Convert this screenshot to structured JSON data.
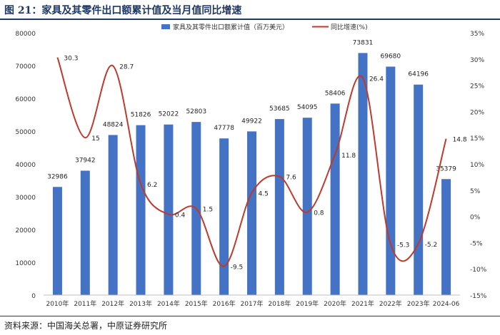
{
  "header": {
    "title": "图 21：家具及其零件出口额累计值及当月值同比增速"
  },
  "footer": {
    "source": "资料来源：中国海关总署，中原证券研究所"
  },
  "chart_data": {
    "type": "bar",
    "title": "家具及其零件出口额累计值及当月值同比增速",
    "categories": [
      "2010年",
      "2011年",
      "2012年",
      "2013年",
      "2014年",
      "2015年",
      "2016年",
      "2017年",
      "2018年",
      "2019年",
      "2020年",
      "2021年",
      "2022年",
      "2023年",
      "2024-06"
    ],
    "series": [
      {
        "name": "家具及其零件出口额累计值（百万美元）",
        "type": "bar",
        "axis": "left",
        "color": "#4472c4",
        "values": [
          32986,
          37942,
          48824,
          51826,
          52022,
          52803,
          47778,
          49922,
          53685,
          54095,
          58406,
          73831,
          69680,
          64196,
          35379
        ]
      },
      {
        "name": "同比增速(%)",
        "type": "line",
        "axis": "right",
        "color": "#c0392b",
        "values": [
          30.3,
          15.0,
          28.7,
          6.2,
          0.4,
          1.5,
          -9.5,
          4.5,
          7.6,
          0.8,
          11.8,
          26.4,
          -5.3,
          -5.2,
          14.8
        ]
      }
    ],
    "left_axis": {
      "min": 0,
      "max": 80000,
      "step": 10000,
      "ticks": [
        "0",
        "10000",
        "20000",
        "30000",
        "40000",
        "50000",
        "60000",
        "70000",
        "80000"
      ]
    },
    "right_axis": {
      "min": -15,
      "max": 35,
      "step": 5,
      "ticks": [
        "-15%",
        "-10%",
        "-5%",
        "0%",
        "5%",
        "10%",
        "15%",
        "20%",
        "25%",
        "30%",
        "35%"
      ]
    },
    "grid": false,
    "legend_position": "top-center"
  }
}
